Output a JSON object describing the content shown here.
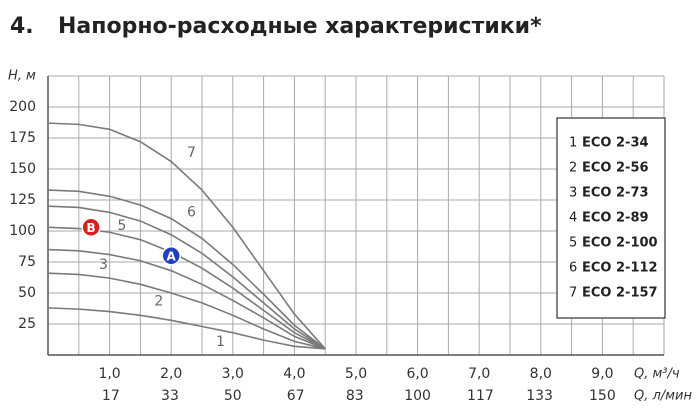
{
  "chart_data": {
    "type": "line",
    "section_number": "4.",
    "title": "Напорно-расходные характеристики*",
    "y_label": "Н, м",
    "x_label": "Q, м³/ч",
    "x2_label": "Q, л/мин",
    "xlim": [
      0,
      10
    ],
    "ylim": [
      0,
      225
    ],
    "grid_step": [
      0.5,
      25
    ],
    "xticks": [
      {
        "value": 1,
        "label": "1,0"
      },
      {
        "value": 2,
        "label": "2,0"
      },
      {
        "value": 3,
        "label": "3,0"
      },
      {
        "value": 4,
        "label": "4,0"
      },
      {
        "value": 5,
        "label": "5,0"
      },
      {
        "value": 6,
        "label": "6,0"
      },
      {
        "value": 7,
        "label": "7,0"
      },
      {
        "value": 8,
        "label": "8,0"
      },
      {
        "value": 9,
        "label": "9,0"
      }
    ],
    "x2lim": [
      0,
      166.67
    ],
    "x2ticks": [
      17,
      33,
      50,
      67,
      83,
      100,
      117,
      133,
      150
    ],
    "yticks": [
      25,
      50,
      75,
      100,
      125,
      150,
      175,
      200
    ],
    "x": [
      0,
      0.5,
      1,
      1.5,
      2,
      2.5,
      3,
      3.5,
      4,
      4.5
    ],
    "series": [
      {
        "label": "1",
        "name": "ECO 2-34",
        "color": "#7a7a7a",
        "values": [
          38,
          37,
          35,
          32,
          28,
          23,
          18,
          12,
          7,
          5
        ]
      },
      {
        "label": "2",
        "name": "ECO 2-56",
        "color": "#7a7a7a",
        "values": [
          66,
          65,
          62,
          57,
          50,
          42,
          32,
          21,
          11,
          5
        ]
      },
      {
        "label": "3",
        "name": "ECO 2-73",
        "color": "#7a7a7a",
        "values": [
          85,
          84,
          81,
          76,
          68,
          57,
          44,
          30,
          15,
          5
        ]
      },
      {
        "label": "4",
        "name": "ECO 2-89",
        "color": "#7a7a7a",
        "values": [
          103,
          102,
          99,
          93,
          83,
          70,
          54,
          36,
          18,
          5
        ]
      },
      {
        "label": "5",
        "name": "ECO 2-100",
        "color": "#7a7a7a",
        "values": [
          120,
          119,
          115,
          108,
          97,
          82,
          63,
          42,
          21,
          5
        ]
      },
      {
        "label": "6",
        "name": "ECO 2-112",
        "color": "#7a7a7a",
        "values": [
          133,
          132,
          128,
          121,
          110,
          94,
          73,
          49,
          24,
          5
        ]
      },
      {
        "label": "7",
        "name": "ECO 2-157",
        "color": "#7a7a7a",
        "values": [
          187,
          186,
          182,
          172,
          156,
          133,
          103,
          68,
          33,
          5
        ]
      }
    ],
    "points": [
      {
        "label": "A",
        "x": 2.0,
        "y": 80,
        "color": "#1f3fbf"
      },
      {
        "label": "B",
        "x": 0.7,
        "y": 103,
        "color": "#d62020"
      }
    ]
  }
}
